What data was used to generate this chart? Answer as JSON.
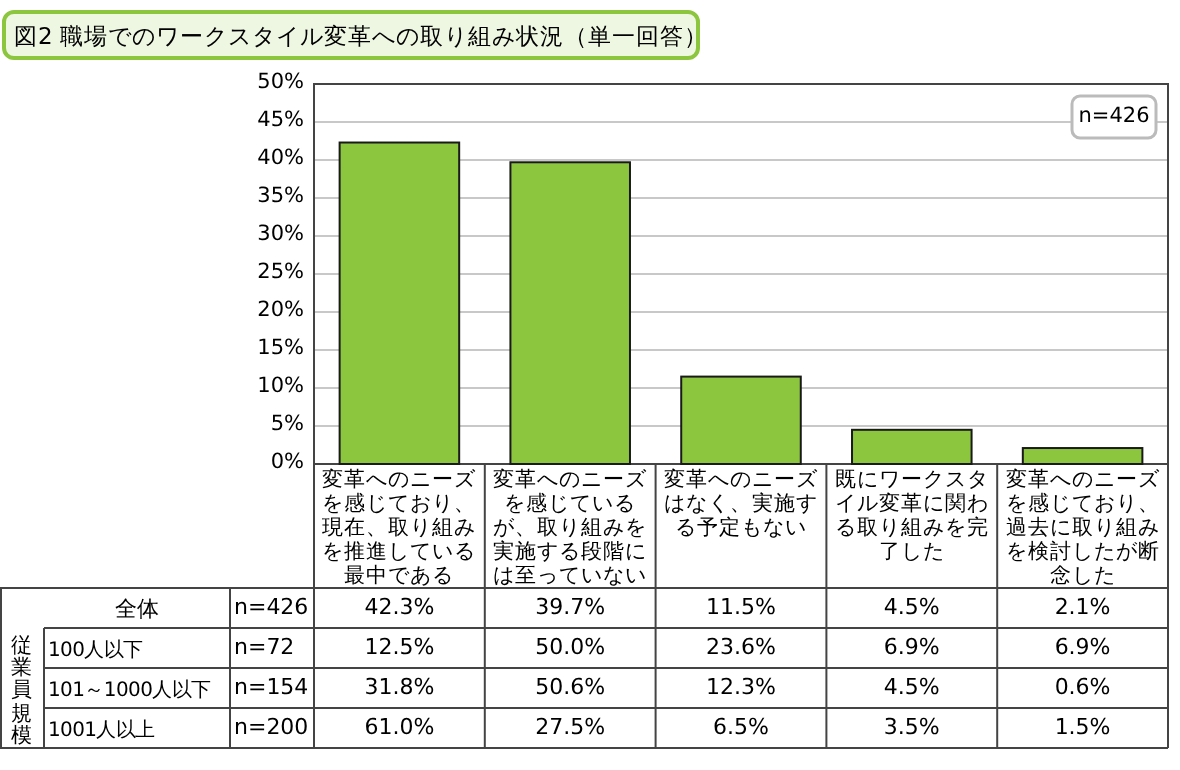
{
  "chart_data": {
    "type": "bar",
    "title": "図2 職場でのワークスタイル変革への取り組み状況（単一回答）",
    "categories": [
      "変革へのニーズを感じており、現在、取り組みを推進している最中である",
      "変革へのニーズを感じているが、取り組みを実施する段階には至っていない",
      "変革へのニーズはなく、実施する予定もない",
      "既にワークスタイル変革に関わる取り組みを完了した",
      "変革へのニーズを感じており、過去に取り組みを検討したが断念した"
    ],
    "values": [
      42.3,
      39.7,
      11.5,
      4.5,
      2.1
    ],
    "value_labels": [
      "42.3%",
      "39.7%",
      "11.5%",
      "4.5%",
      "2.1%"
    ],
    "color": "#8cc63e",
    "ylim": [
      0,
      50
    ],
    "yticks": [
      {
        "value": 0,
        "label": "0%"
      },
      {
        "value": 5,
        "label": "5%"
      },
      {
        "value": 10,
        "label": "10%"
      },
      {
        "value": 15,
        "label": "15%"
      },
      {
        "value": 20,
        "label": "20%"
      },
      {
        "value": 25,
        "label": "25%"
      },
      {
        "value": 30,
        "label": "30%"
      },
      {
        "value": 35,
        "label": "35%"
      },
      {
        "value": 40,
        "label": "40%"
      },
      {
        "value": 45,
        "label": "45%"
      },
      {
        "value": 50,
        "label": "50%"
      }
    ],
    "grid": "y",
    "annotations": [
      "n=426",
      "全体",
      "n=426",
      "従業員規模",
      "100人以下",
      "n=72",
      "12.5%",
      "50.0%",
      "23.6%",
      "6.9%",
      "6.9%",
      "101～1000人以下",
      "n=154",
      "31.8%",
      "50.6%",
      "12.3%",
      "4.5%",
      "0.6%",
      "1001人以上",
      "n=200",
      "61.0%",
      "27.5%",
      "6.5%",
      "3.5%",
      "1.5%"
    ]
  }
}
